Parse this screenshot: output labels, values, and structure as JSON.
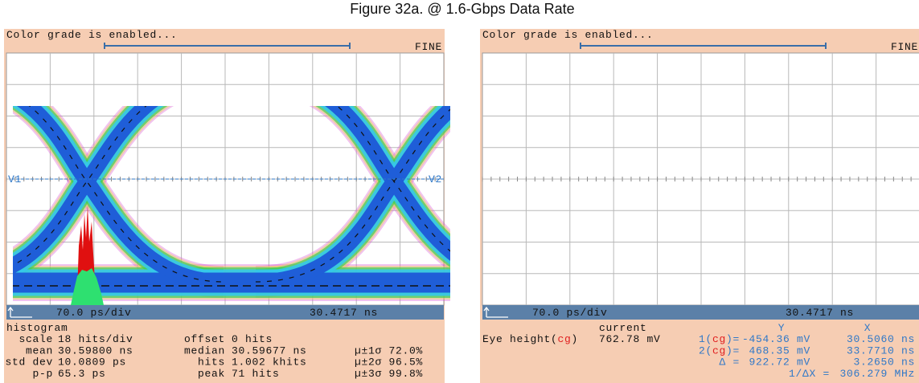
{
  "title": "Figure 32a. @ 1.6-Gbps Data Rate",
  "left_panel": {
    "status": "Color grade is enabled...",
    "mode": "FINE",
    "markers": [
      "V1",
      "V2"
    ],
    "timebase": "70.0 ps/div",
    "position": "30.4717 ns",
    "histogram": {
      "heading": "histogram",
      "rows": [
        [
          "scale",
          "18 hits/div",
          "offset",
          "0 hits"
        ],
        [
          "mean",
          "30.59800 ns",
          "median",
          "30.59677 ns",
          "µ±1σ",
          "72.0%"
        ],
        [
          "std dev",
          "10.0809 ps",
          "hits",
          "1.002 khits",
          "µ±2σ",
          "96.5%"
        ],
        [
          "p-p",
          "65.3 ps",
          "peak",
          "71 hits",
          "µ±3σ",
          "99.8%"
        ]
      ]
    }
  },
  "right_panel": {
    "status": "Color grade is enabled...",
    "mode": "FINE",
    "timebase": "70.0 ps/div",
    "position": "30.4717 ns",
    "readout": {
      "headers": [
        "current",
        "Y",
        "X"
      ],
      "eye": {
        "label_parts": [
          "Eye height(",
          "cg",
          ")"
        ],
        "current": "762.78 mV"
      },
      "cursors": [
        {
          "parts": [
            "1(",
            "cg",
            ")="
          ],
          "y": "-454.36 mV",
          "x": "30.5060 ns"
        },
        {
          "parts": [
            "2(",
            "cg",
            ")="
          ],
          "y": "468.35 mV",
          "x": "33.7710 ns"
        },
        {
          "parts": [
            "Δ ="
          ],
          "y": "922.72 mV",
          "x": "3.2650 ns"
        },
        {
          "parts": [
            "1/ΔX ="
          ],
          "x": "306.279 MHz"
        }
      ]
    }
  }
}
